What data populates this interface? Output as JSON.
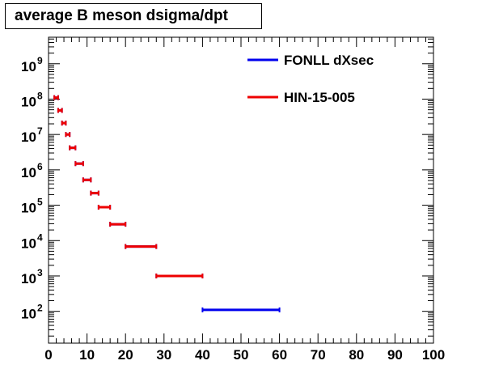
{
  "chart_data": {
    "type": "scatter",
    "title": "average B meson dsigma/dpt",
    "xlabel": "",
    "ylabel": "",
    "xlim": [
      0,
      100
    ],
    "ylim_log10": [
      1.1,
      9.75
    ],
    "log_y": true,
    "grid": false,
    "legend_position": "top-right",
    "x_ticks": [
      0,
      10,
      20,
      30,
      40,
      50,
      60,
      70,
      80,
      90,
      100
    ],
    "x_tick_labels": [
      "0",
      "10",
      "20",
      "30",
      "40",
      "50",
      "60",
      "70",
      "80",
      "90",
      "100"
    ],
    "y_tick_exponents": [
      2,
      3,
      4,
      5,
      6,
      7,
      8,
      9
    ],
    "y_tick_labels": [
      "10",
      "10",
      "10",
      "10",
      "10",
      "10",
      "10",
      "10"
    ],
    "y_tick_superscripts": [
      "2",
      "3",
      "4",
      "5",
      "6",
      "7",
      "8",
      "9"
    ],
    "series": [
      {
        "name": "FONLL dXsec",
        "color": "#0000ee",
        "points": [
          {
            "x0": 1.5,
            "x1": 2.5,
            "y": 110000000.0
          },
          {
            "x0": 2.5,
            "x1": 3.5,
            "y": 48000000.0
          },
          {
            "x0": 3.5,
            "x1": 4.5,
            "y": 21000000.0
          },
          {
            "x0": 4.5,
            "x1": 5.5,
            "y": 10000000.0
          },
          {
            "x0": 5.5,
            "x1": 7.0,
            "y": 4200000.0
          },
          {
            "x0": 7.0,
            "x1": 9.0,
            "y": 1500000.0
          },
          {
            "x0": 9.0,
            "x1": 11.0,
            "y": 520000.0
          },
          {
            "x0": 11.0,
            "x1": 13.0,
            "y": 220000.0
          },
          {
            "x0": 13.0,
            "x1": 16.0,
            "y": 88000.0
          },
          {
            "x0": 16.0,
            "x1": 20.0,
            "y": 29000.0
          },
          {
            "x0": 20.0,
            "x1": 28.0,
            "y": 6800.0
          },
          {
            "x0": 28.0,
            "x1": 40.0,
            "y": 1000.0
          },
          {
            "x0": 40.0,
            "x1": 60.0,
            "y": 110.0
          }
        ]
      },
      {
        "name": "HIN-15-005",
        "color": "#ee0000",
        "points": [
          {
            "x0": 1.5,
            "x1": 2.5,
            "y": 110000000.0
          },
          {
            "x0": 2.5,
            "x1": 3.5,
            "y": 48000000.0
          },
          {
            "x0": 3.5,
            "x1": 4.5,
            "y": 21000000.0
          },
          {
            "x0": 4.5,
            "x1": 5.5,
            "y": 10000000.0
          },
          {
            "x0": 5.5,
            "x1": 7.0,
            "y": 4200000.0
          },
          {
            "x0": 7.0,
            "x1": 9.0,
            "y": 1500000.0
          },
          {
            "x0": 9.0,
            "x1": 11.0,
            "y": 520000.0
          },
          {
            "x0": 11.0,
            "x1": 13.0,
            "y": 220000.0
          },
          {
            "x0": 13.0,
            "x1": 16.0,
            "y": 88000.0
          },
          {
            "x0": 16.0,
            "x1": 20.0,
            "y": 29000.0
          },
          {
            "x0": 20.0,
            "x1": 28.0,
            "y": 6800.0
          },
          {
            "x0": 28.0,
            "x1": 40.0,
            "y": 1000.0
          }
        ]
      }
    ]
  }
}
